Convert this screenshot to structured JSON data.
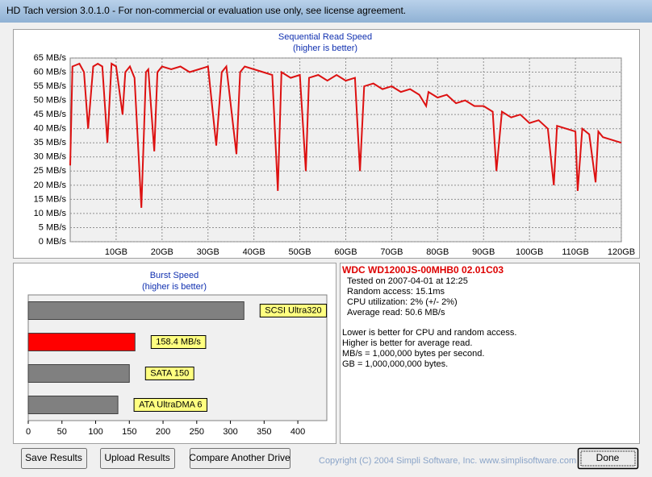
{
  "window_title": "HD Tach version 3.0.1.0  - For non-commercial or evaluation use only, see license agreement.",
  "chart_data": [
    {
      "type": "line",
      "title": "Sequential Read Speed",
      "subtitle": "(higher is better)",
      "color": "#dd1111",
      "grid": true,
      "x": [
        0,
        0.5,
        2,
        3,
        3.9,
        5,
        6,
        7,
        8.1,
        9,
        10,
        11.4,
        12,
        13,
        14,
        15.5,
        16.5,
        17,
        18.3,
        19,
        20,
        22,
        24,
        26,
        28,
        30,
        31.8,
        33,
        34,
        36.2,
        37,
        38,
        40,
        42,
        44,
        45.2,
        46,
        48,
        50,
        51.3,
        52,
        54,
        56,
        58,
        60,
        62,
        63.1,
        64,
        66,
        68,
        70,
        72,
        74,
        76,
        77.5,
        78,
        80,
        82,
        84,
        86,
        88,
        90,
        92,
        92.8,
        94,
        96,
        98,
        100,
        102,
        104,
        105.3,
        106,
        108,
        110,
        110.5,
        111.5,
        113,
        114.4,
        115,
        116,
        118,
        120
      ],
      "values": [
        27,
        62,
        63,
        60,
        40,
        62,
        63,
        62,
        35,
        63,
        62,
        45,
        60,
        62,
        58,
        12,
        60,
        61,
        32,
        60,
        62,
        61,
        62,
        60,
        61,
        62,
        34,
        60,
        62,
        31,
        60,
        62,
        61,
        60,
        59,
        18,
        60,
        58,
        59,
        25,
        58,
        59,
        57,
        59,
        57,
        58,
        25,
        55,
        56,
        54,
        55,
        53,
        54,
        52,
        48,
        53,
        51,
        52,
        49,
        50,
        48,
        48,
        46,
        25,
        46,
        44,
        45,
        42,
        43,
        40,
        20,
        41,
        40,
        39,
        18,
        40,
        38,
        21,
        39,
        37,
        36,
        35
      ],
      "xlim": [
        0,
        120
      ],
      "xticks": [
        {
          "value": 10,
          "label": "10GB"
        },
        {
          "value": 20,
          "label": "20GB"
        },
        {
          "value": 30,
          "label": "30GB"
        },
        {
          "value": 40,
          "label": "40GB"
        },
        {
          "value": 50,
          "label": "50GB"
        },
        {
          "value": 60,
          "label": "60GB"
        },
        {
          "value": 70,
          "label": "70GB"
        },
        {
          "value": 80,
          "label": "80GB"
        },
        {
          "value": 90,
          "label": "90GB"
        },
        {
          "value": 100,
          "label": "100GB"
        },
        {
          "value": 110,
          "label": "110GB"
        },
        {
          "value": 120,
          "label": "120GB"
        }
      ],
      "ylim": [
        0,
        65
      ],
      "yticks": [
        {
          "value": 0,
          "label": "0 MB/s"
        },
        {
          "value": 5,
          "label": "5 MB/s"
        },
        {
          "value": 10,
          "label": "10 MB/s"
        },
        {
          "value": 15,
          "label": "15 MB/s"
        },
        {
          "value": 20,
          "label": "20 MB/s"
        },
        {
          "value": 25,
          "label": "25 MB/s"
        },
        {
          "value": 30,
          "label": "30 MB/s"
        },
        {
          "value": 35,
          "label": "35 MB/s"
        },
        {
          "value": 40,
          "label": "40 MB/s"
        },
        {
          "value": 45,
          "label": "45 MB/s"
        },
        {
          "value": 50,
          "label": "50 MB/s"
        },
        {
          "value": 55,
          "label": "55 MB/s"
        },
        {
          "value": 60,
          "label": "60 MB/s"
        },
        {
          "value": 65,
          "label": "65 MB/s"
        }
      ]
    },
    {
      "type": "hbar",
      "title": "Burst Speed",
      "subtitle": "(higher is better)",
      "grid": false,
      "categories": [
        "SCSI Ultra320",
        "158.4 MB/s",
        "SATA 150",
        "ATA UltraDMA 6"
      ],
      "values": [
        320,
        158.4,
        150,
        133
      ],
      "colors": [
        "#808080",
        "#ff0000",
        "#808080",
        "#808080"
      ],
      "xlim": [
        0,
        443
      ],
      "xticks": [
        0,
        50,
        100,
        150,
        200,
        250,
        300,
        350,
        400
      ]
    }
  ],
  "info": {
    "title": "WDC WD1200JS-00MHB0 02.01C03",
    "lines": [
      "Tested on 2007-04-01 at 12:25",
      "Random access: 15.1ms",
      "CPU utilization: 2% (+/- 2%)",
      "Average read: 50.6 MB/s"
    ],
    "notes": [
      "Lower is better for CPU and random access.",
      "Higher is better for average read.",
      "MB/s = 1,000,000 bytes per second.",
      "GB = 1,000,000,000 bytes."
    ]
  },
  "buttons": [
    "Save Results",
    "Upload Results",
    "Compare Another Drive",
    "Done"
  ],
  "copyright": "Copyright (C) 2004 Simpli Software, Inc. www.simplisoftware.com"
}
